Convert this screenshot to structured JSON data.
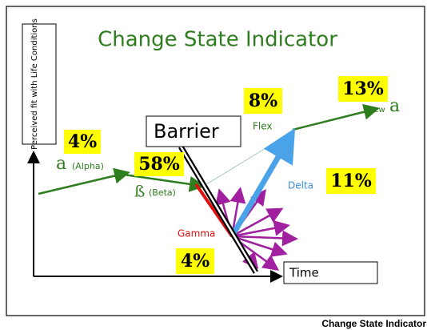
{
  "title": "Change State Indicator",
  "y_axis_label": "Perceived fit with Life Conditions",
  "x_axis_label": "Time",
  "barrier": "Barrier",
  "alpha": {
    "percent": "4%",
    "symbol": "a",
    "name": "(Alpha)"
  },
  "beta": {
    "percent": "58%",
    "symbol": "ß",
    "name": "(Beta)"
  },
  "flex": {
    "percent": "8%",
    "name": "Flex"
  },
  "new_alpha": {
    "percent": "13%",
    "prefix": "new",
    "symbol": "a"
  },
  "delta": {
    "percent": "11%",
    "name": "Delta"
  },
  "gamma": {
    "percent": "4%",
    "name": "Gamma"
  },
  "caption": "Change State Indicator"
}
